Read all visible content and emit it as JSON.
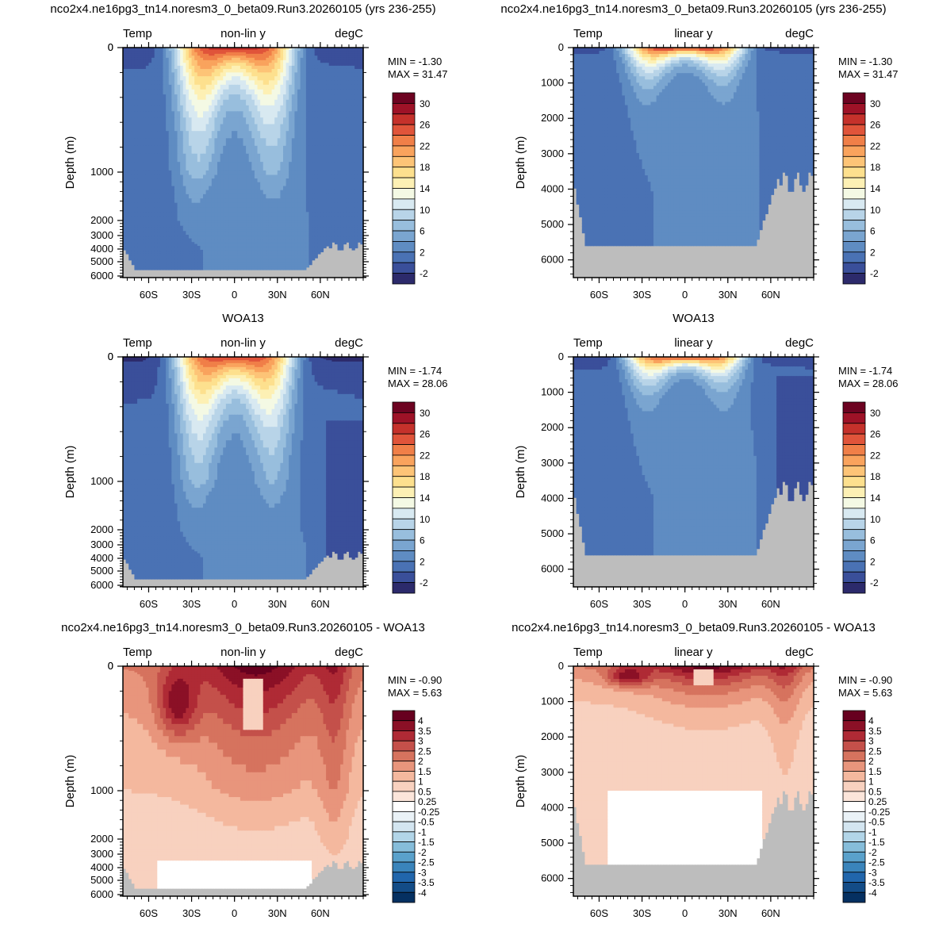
{
  "case_name": "nco2x4.ne16pg3_tn14.noresm3_0_beta09.Run3.20260105",
  "chart_data": [
    {
      "type": "heatmap",
      "title": "nco2x4.ne16pg3_tn14.noresm3_0_beta09.Run3.20260105 (yrs 236-255)",
      "left_label": "Temp",
      "center_label": "non-lin y",
      "right_label": "degC",
      "ylabel": "Depth (m)",
      "yscale": "non-linear",
      "xticks": [
        "60S",
        "30S",
        "0",
        "30N",
        "60N"
      ],
      "yticks": [
        "0",
        "1000",
        "2000",
        "3000",
        "4000",
        "5000",
        "6000"
      ],
      "min_label": "MIN = -1.30",
      "max_label": "MAX = 31.47",
      "colorbar": "temp",
      "field": "temp_model"
    },
    {
      "type": "heatmap",
      "title": "nco2x4.ne16pg3_tn14.noresm3_0_beta09.Run3.20260105 (yrs 236-255)",
      "left_label": "Temp",
      "center_label": "linear y",
      "right_label": "degC",
      "ylabel": "Depth (m)",
      "yscale": "linear",
      "xticks": [
        "60S",
        "30S",
        "0",
        "30N",
        "60N"
      ],
      "yticks": [
        "0",
        "1000",
        "2000",
        "3000",
        "4000",
        "5000",
        "6000"
      ],
      "min_label": "MIN = -1.30",
      "max_label": "MAX = 31.47",
      "colorbar": "temp",
      "field": "temp_model"
    },
    {
      "type": "heatmap",
      "title": "WOA13",
      "left_label": "Temp",
      "center_label": "non-lin y",
      "right_label": "degC",
      "ylabel": "Depth (m)",
      "yscale": "non-linear",
      "xticks": [
        "60S",
        "30S",
        "0",
        "30N",
        "60N"
      ],
      "yticks": [
        "0",
        "1000",
        "2000",
        "3000",
        "4000",
        "5000",
        "6000"
      ],
      "min_label": "MIN = -1.74",
      "max_label": "MAX = 28.06",
      "colorbar": "temp",
      "field": "temp_obs"
    },
    {
      "type": "heatmap",
      "title": "WOA13",
      "left_label": "Temp",
      "center_label": "linear y",
      "right_label": "degC",
      "ylabel": "Depth (m)",
      "yscale": "linear",
      "xticks": [
        "60S",
        "30S",
        "0",
        "30N",
        "60N"
      ],
      "yticks": [
        "0",
        "1000",
        "2000",
        "3000",
        "4000",
        "5000",
        "6000"
      ],
      "min_label": "MIN = -1.74",
      "max_label": "MAX = 28.06",
      "colorbar": "temp",
      "field": "temp_obs"
    },
    {
      "type": "heatmap",
      "title": "nco2x4.ne16pg3_tn14.noresm3_0_beta09.Run3.20260105 - WOA13",
      "left_label": "Temp",
      "center_label": "non-lin y",
      "right_label": "degC",
      "ylabel": "Depth (m)",
      "yscale": "non-linear",
      "xticks": [
        "60S",
        "30S",
        "0",
        "30N",
        "60N"
      ],
      "yticks": [
        "0",
        "1000",
        "2000",
        "3000",
        "4000",
        "5000",
        "6000"
      ],
      "min_label": "MIN = -0.90",
      "max_label": "MAX =  5.63",
      "colorbar": "diff",
      "field": "temp_diff"
    },
    {
      "type": "heatmap",
      "title": "nco2x4.ne16pg3_tn14.noresm3_0_beta09.Run3.20260105 - WOA13",
      "left_label": "Temp",
      "center_label": "linear y",
      "right_label": "degC",
      "ylabel": "Depth (m)",
      "yscale": "linear",
      "xticks": [
        "60S",
        "30S",
        "0",
        "30N",
        "60N"
      ],
      "yticks": [
        "0",
        "1000",
        "2000",
        "3000",
        "4000",
        "5000",
        "6000"
      ],
      "min_label": "MIN = -0.90",
      "max_label": "MAX =  5.63",
      "colorbar": "diff",
      "field": "temp_diff"
    }
  ],
  "colorbars": {
    "temp": {
      "labels": [
        "30",
        "26",
        "22",
        "18",
        "14",
        "10",
        "6",
        "2",
        "-2"
      ],
      "levels": [
        -2,
        0,
        2,
        4,
        6,
        8,
        10,
        12,
        14,
        16,
        18,
        20,
        22,
        24,
        26,
        28,
        30
      ],
      "colors": [
        "#2c2a6b",
        "#3a4f9a",
        "#4a72b4",
        "#5f8cc2",
        "#7aa5d0",
        "#98bedd",
        "#b8d4e8",
        "#d8e9f1",
        "#f4f9e4",
        "#fdf0b4",
        "#fde08e",
        "#fdc477",
        "#f9a35d",
        "#f07f48",
        "#e0543a",
        "#c5312b",
        "#9e1227",
        "#6d0321"
      ]
    },
    "diff": {
      "labels": [
        "4",
        "3.5",
        "3",
        "2.5",
        "2",
        "1.5",
        "1",
        "0.5",
        "0.25",
        "-0.25",
        "-0.5",
        "-1",
        "-1.5",
        "-2",
        "-2.5",
        "-3",
        "-3.5",
        "-4"
      ],
      "levels": [
        -4,
        -3.5,
        -3,
        -2.5,
        -2,
        -1.5,
        -1,
        -0.5,
        -0.25,
        0.25,
        0.5,
        1,
        1.5,
        2,
        2.5,
        3,
        3.5,
        4
      ],
      "colors": [
        "#053061",
        "#134c87",
        "#2166ac",
        "#3a84bb",
        "#5aa1cb",
        "#86bdda",
        "#b2d5e8",
        "#d3e5f0",
        "#eaf2f7",
        "#ffffff",
        "#fbe5da",
        "#f8d1bf",
        "#f4b89e",
        "#e8957c",
        "#d6735e",
        "#c4504a",
        "#af2a35",
        "#8b1026",
        "#67001f"
      ]
    }
  }
}
